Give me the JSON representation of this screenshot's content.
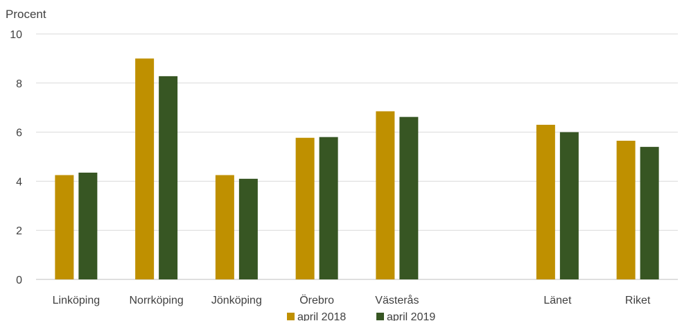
{
  "chart_data": {
    "type": "bar",
    "ylabel": "Procent",
    "ylim": [
      0,
      10
    ],
    "yticks": [
      0,
      2,
      4,
      6,
      8,
      10
    ],
    "grid": true,
    "legend_position": "bottom",
    "categories": [
      "Linköping",
      "Norrköping",
      "Jönköping",
      "Örebro",
      "Västerås",
      "",
      "Länet",
      "Riket"
    ],
    "series": [
      {
        "name": "april 2018",
        "color": "#BF9000",
        "values": [
          4.25,
          9.0,
          4.25,
          5.77,
          6.85,
          null,
          6.3,
          5.65
        ]
      },
      {
        "name": "april 2019",
        "color": "#375623",
        "values": [
          4.35,
          8.28,
          4.1,
          5.8,
          6.62,
          null,
          6.0,
          5.4
        ]
      }
    ]
  }
}
